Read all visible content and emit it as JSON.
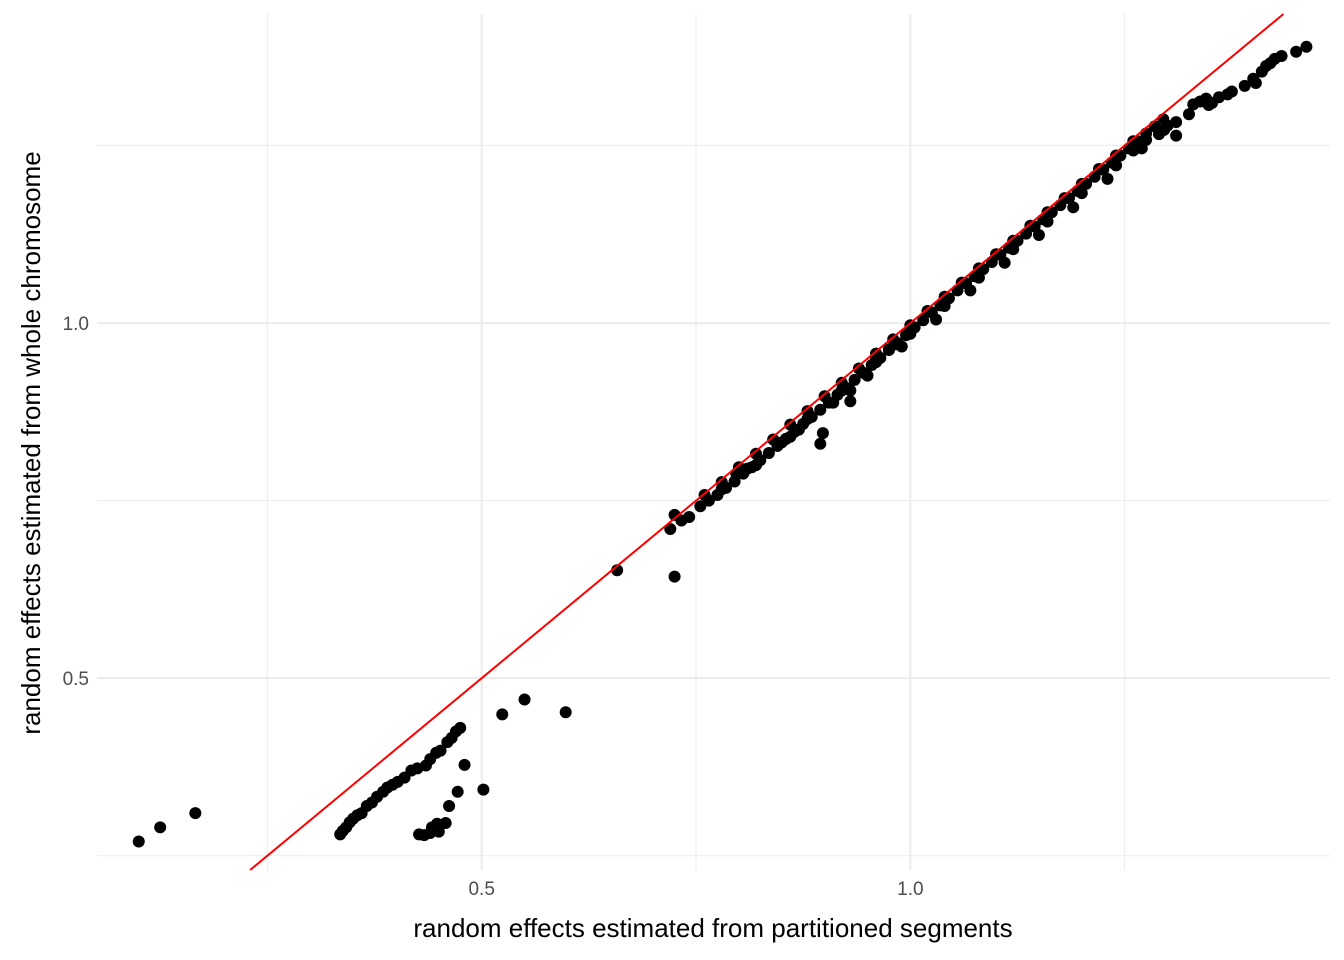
{
  "chart_data": {
    "type": "scatter",
    "title": "",
    "xlabel": "random effects estimated from partitioned segments",
    "ylabel": "random effects estimated from whole chromosome",
    "xlim": [
      0.0513,
      1.4895
    ],
    "ylim": [
      0.2299,
      1.4352
    ],
    "x_major_ticks": [
      0.5,
      1.0
    ],
    "x_tick_labels": [
      "0.5",
      "1.0"
    ],
    "x_minor_ticks": [
      0.25,
      0.75,
      1.25
    ],
    "y_major_ticks": [
      0.5,
      1.0
    ],
    "y_tick_labels": [
      "0.5",
      "1.0"
    ],
    "y_minor_ticks": [
      0.25,
      0.75,
      1.25
    ],
    "grid": true,
    "reference_line": {
      "type": "y=x",
      "color": "#ff0000"
    },
    "point_color": "#000000",
    "series": [
      {
        "points": [
          [
            0.1,
            0.27
          ],
          [
            0.125,
            0.29
          ],
          [
            0.166,
            0.31
          ],
          [
            0.335,
            0.28
          ],
          [
            0.338,
            0.285
          ],
          [
            0.342,
            0.29
          ],
          [
            0.346,
            0.297
          ],
          [
            0.35,
            0.302
          ],
          [
            0.355,
            0.307
          ],
          [
            0.36,
            0.31
          ],
          [
            0.366,
            0.32
          ],
          [
            0.372,
            0.325
          ],
          [
            0.378,
            0.333
          ],
          [
            0.385,
            0.34
          ],
          [
            0.39,
            0.346
          ],
          [
            0.396,
            0.35
          ],
          [
            0.402,
            0.354
          ],
          [
            0.41,
            0.36
          ],
          [
            0.418,
            0.37
          ],
          [
            0.425,
            0.373
          ],
          [
            0.435,
            0.377
          ],
          [
            0.44,
            0.386
          ],
          [
            0.447,
            0.395
          ],
          [
            0.452,
            0.398
          ],
          [
            0.46,
            0.41
          ],
          [
            0.465,
            0.416
          ],
          [
            0.47,
            0.425
          ],
          [
            0.475,
            0.43
          ],
          [
            0.427,
            0.28
          ],
          [
            0.433,
            0.279
          ],
          [
            0.44,
            0.282
          ],
          [
            0.442,
            0.29
          ],
          [
            0.448,
            0.295
          ],
          [
            0.45,
            0.284
          ],
          [
            0.458,
            0.296
          ],
          [
            0.462,
            0.32
          ],
          [
            0.472,
            0.34
          ],
          [
            0.48,
            0.378
          ],
          [
            0.502,
            0.343
          ],
          [
            0.524,
            0.449
          ],
          [
            0.55,
            0.47
          ],
          [
            0.598,
            0.452
          ],
          [
            0.658,
            0.652
          ],
          [
            0.72,
            0.71
          ],
          [
            0.725,
            0.73
          ],
          [
            0.733,
            0.722
          ],
          [
            0.742,
            0.727
          ],
          [
            0.725,
            0.643
          ],
          [
            0.797,
            0.788
          ],
          [
            0.855,
            0.837
          ],
          [
            0.895,
            0.83
          ],
          [
            0.898,
            0.845
          ],
          [
            0.93,
            0.905
          ],
          [
            0.93,
            0.89
          ],
          [
            0.96,
            0.95
          ],
          [
            0.975,
            0.963
          ],
          [
            0.982,
            0.97
          ],
          [
            0.997,
            0.985
          ],
          [
            0.755,
            0.742
          ],
          [
            0.765,
            0.75
          ],
          [
            0.775,
            0.758
          ],
          [
            0.785,
            0.768
          ],
          [
            0.795,
            0.777
          ],
          [
            0.805,
            0.788
          ],
          [
            0.815,
            0.797
          ],
          [
            0.825,
            0.807
          ],
          [
            0.835,
            0.817
          ],
          [
            0.845,
            0.827
          ],
          [
            0.855,
            0.837
          ],
          [
            0.865,
            0.847
          ],
          [
            0.875,
            0.858
          ],
          [
            0.885,
            0.868
          ],
          [
            0.895,
            0.878
          ],
          [
            0.905,
            0.888
          ],
          [
            0.915,
            0.899
          ],
          [
            0.925,
            0.909
          ],
          [
            0.935,
            0.92
          ],
          [
            0.945,
            0.93
          ],
          [
            0.955,
            0.941
          ],
          [
            0.965,
            0.951
          ],
          [
            0.975,
            0.962
          ],
          [
            0.985,
            0.972
          ],
          [
            0.995,
            0.983
          ],
          [
            1.005,
            0.994
          ],
          [
            1.015,
            1.004
          ],
          [
            1.025,
            1.015
          ],
          [
            1.035,
            1.025
          ],
          [
            1.045,
            1.035
          ],
          [
            1.055,
            1.046
          ],
          [
            1.065,
            1.056
          ],
          [
            1.075,
            1.066
          ],
          [
            1.085,
            1.076
          ],
          [
            1.095,
            1.086
          ],
          [
            1.105,
            1.096
          ],
          [
            1.115,
            1.106
          ],
          [
            1.125,
            1.116
          ],
          [
            1.135,
            1.126
          ],
          [
            1.145,
            1.136
          ],
          [
            1.155,
            1.146
          ],
          [
            1.165,
            1.156
          ],
          [
            1.175,
            1.166
          ],
          [
            1.185,
            1.176
          ],
          [
            1.195,
            1.186
          ],
          [
            1.205,
            1.196
          ],
          [
            1.215,
            1.206
          ],
          [
            1.225,
            1.216
          ],
          [
            1.235,
            1.226
          ],
          [
            1.245,
            1.236
          ],
          [
            1.255,
            1.246
          ],
          [
            1.265,
            1.256
          ],
          [
            1.275,
            1.267
          ],
          [
            1.285,
            1.277
          ],
          [
            1.295,
            1.287
          ],
          [
            0.76,
            0.758
          ],
          [
            0.78,
            0.776
          ],
          [
            0.8,
            0.797
          ],
          [
            0.82,
            0.816
          ],
          [
            0.84,
            0.836
          ],
          [
            0.86,
            0.857
          ],
          [
            0.88,
            0.876
          ],
          [
            0.9,
            0.897
          ],
          [
            0.92,
            0.916
          ],
          [
            0.94,
            0.936
          ],
          [
            0.96,
            0.957
          ],
          [
            0.98,
            0.977
          ],
          [
            1.0,
            0.997
          ],
          [
            1.02,
            1.017
          ],
          [
            1.04,
            1.037
          ],
          [
            1.06,
            1.057
          ],
          [
            1.08,
            1.077
          ],
          [
            1.1,
            1.097
          ],
          [
            1.12,
            1.116
          ],
          [
            1.14,
            1.137
          ],
          [
            1.16,
            1.156
          ],
          [
            1.18,
            1.176
          ],
          [
            1.2,
            1.196
          ],
          [
            1.22,
            1.217
          ],
          [
            1.24,
            1.236
          ],
          [
            1.26,
            1.256
          ],
          [
            0.78,
            0.766
          ],
          [
            0.81,
            0.795
          ],
          [
            0.85,
            0.832
          ],
          [
            0.87,
            0.85
          ],
          [
            0.91,
            0.888
          ],
          [
            0.95,
            0.926
          ],
          [
            0.99,
            0.967
          ],
          [
            1.03,
            1.005
          ],
          [
            1.07,
            1.046
          ],
          [
            1.11,
            1.085
          ],
          [
            1.15,
            1.124
          ],
          [
            1.19,
            1.163
          ],
          [
            1.23,
            1.203
          ],
          [
            0.82,
            0.8
          ],
          [
            0.86,
            0.84
          ],
          [
            0.88,
            0.865
          ],
          [
            0.92,
            0.905
          ],
          [
            0.96,
            0.945
          ],
          [
            1.0,
            0.985
          ],
          [
            1.04,
            1.024
          ],
          [
            1.08,
            1.064
          ],
          [
            1.12,
            1.104
          ],
          [
            1.16,
            1.143
          ],
          [
            1.2,
            1.183
          ],
          [
            1.24,
            1.222
          ],
          [
            1.26,
            1.243
          ],
          [
            1.27,
            1.246
          ],
          [
            1.275,
            1.258
          ],
          [
            1.29,
            1.266
          ],
          [
            1.3,
            1.278
          ],
          [
            1.31,
            1.283
          ],
          [
            1.325,
            1.294
          ],
          [
            1.33,
            1.308
          ],
          [
            1.338,
            1.312
          ],
          [
            1.345,
            1.316
          ],
          [
            1.352,
            1.31
          ],
          [
            1.31,
            1.264
          ],
          [
            1.296,
            1.272
          ],
          [
            1.348,
            1.307
          ],
          [
            1.36,
            1.318
          ],
          [
            1.37,
            1.322
          ],
          [
            1.375,
            1.326
          ],
          [
            1.39,
            1.334
          ],
          [
            1.4,
            1.344
          ],
          [
            1.41,
            1.354
          ],
          [
            1.415,
            1.362
          ],
          [
            1.42,
            1.366
          ],
          [
            1.425,
            1.372
          ],
          [
            1.433,
            1.376
          ],
          [
            1.45,
            1.382
          ],
          [
            1.462,
            1.389
          ],
          [
            1.403,
            1.338
          ]
        ]
      }
    ]
  }
}
